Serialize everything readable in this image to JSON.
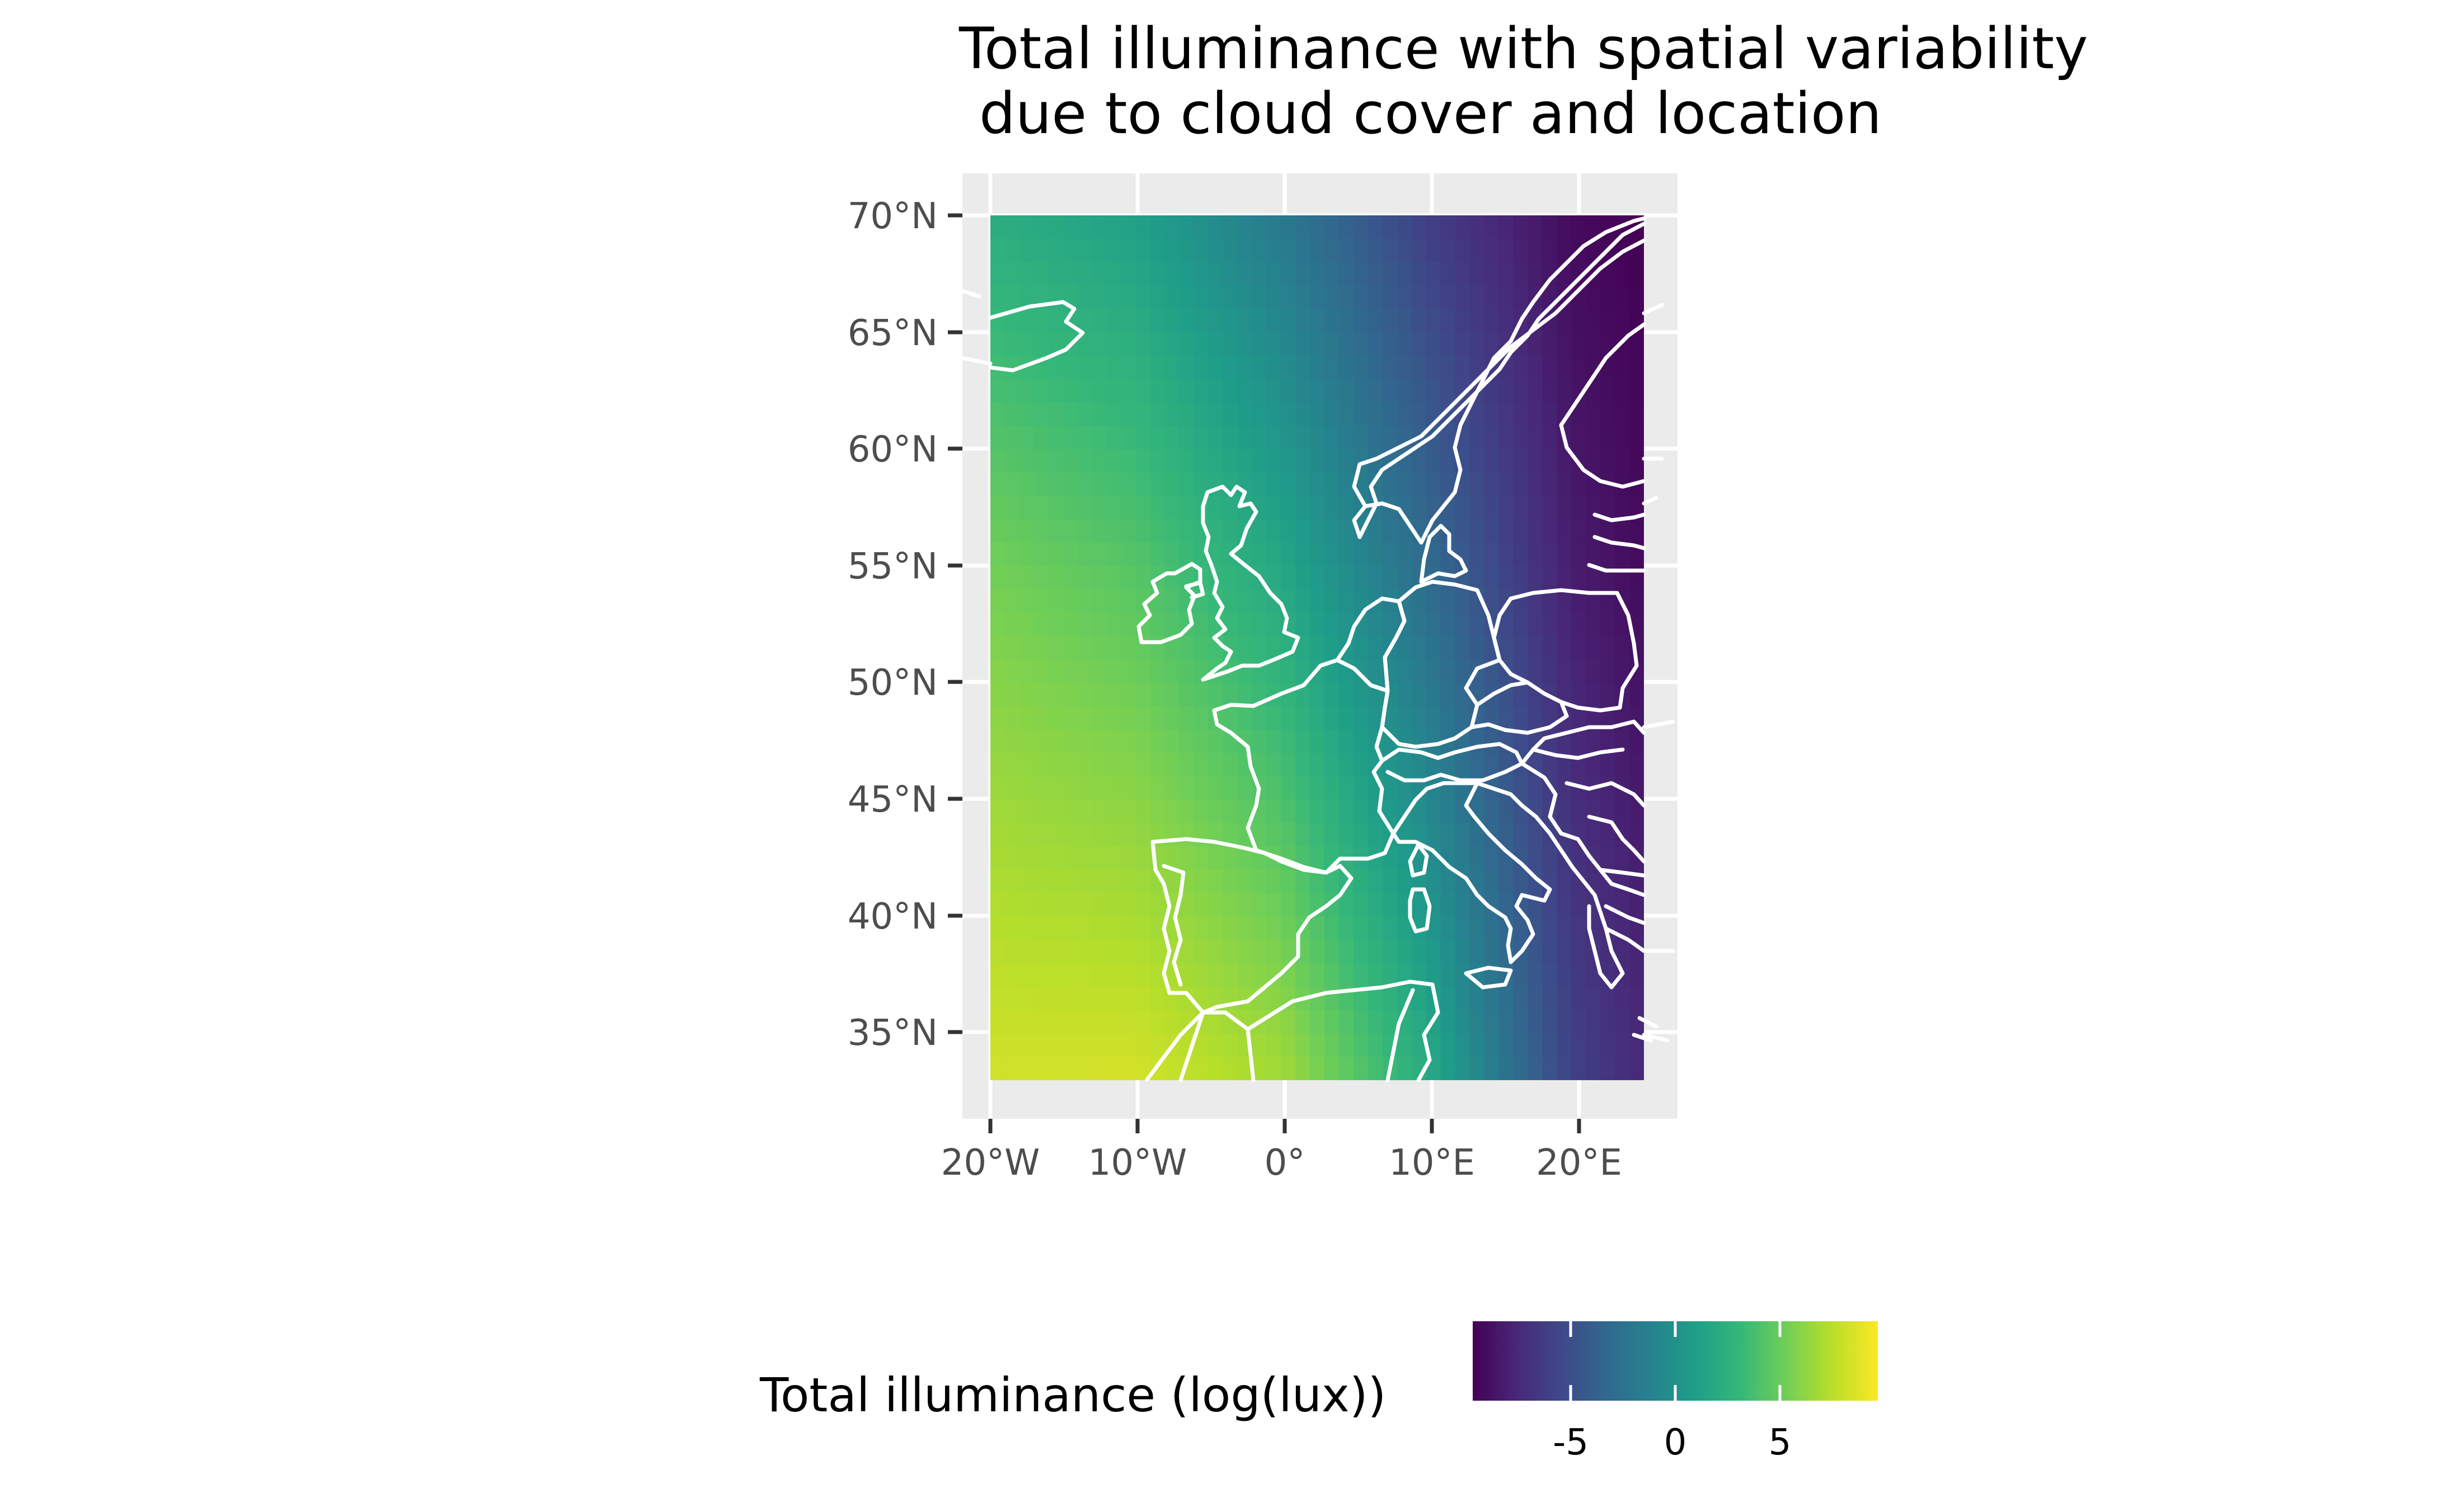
{
  "title": {
    "line1": "Total illuminance with spatial variability",
    "line2": "due to cloud cover and location"
  },
  "axes": {
    "x_ticks": [
      "20°W",
      "10°W",
      "0°",
      "10°E",
      "20°E"
    ],
    "y_ticks": [
      "70°N",
      "65°N",
      "60°N",
      "55°N",
      "50°N",
      "45°N",
      "40°N",
      "35°N"
    ]
  },
  "legend": {
    "title": "Total illuminance (log(lux))",
    "ticks": [
      "-5",
      "0",
      "5"
    ],
    "position": "bottom"
  },
  "colors": {
    "panel_background": "#ebebeb",
    "border_lines": "#ffffff",
    "viridis": [
      "#440154",
      "#482878",
      "#3e4989",
      "#31688e",
      "#26828e",
      "#1f9e89",
      "#35b779",
      "#6ece58",
      "#b5de2b",
      "#fde725"
    ]
  },
  "chart_data": {
    "type": "heatmap",
    "title": "Total illuminance with spatial variability due to cloud cover and location",
    "fill_label": "Total illuminance (log(lux))",
    "lon_range": [
      -20,
      25
    ],
    "lat_range": [
      33,
      70
    ],
    "fill_range": [
      -8.5,
      10
    ],
    "legend_breaks": [
      -5,
      0,
      5
    ],
    "grid": true,
    "legend_placement": "bottom",
    "fill_samples_by_longitude": [
      {
        "lon": -20,
        "lat_70": 3,
        "lat_55": 6,
        "lat_35": 8.5
      },
      {
        "lon": -10,
        "lat_70": 2,
        "lat_55": 5,
        "lat_35": 8.5
      },
      {
        "lon": 0,
        "lat_70": -1,
        "lat_55": 2.5,
        "lat_35": 7
      },
      {
        "lon": 10,
        "lat_70": -5,
        "lat_55": -2,
        "lat_35": 2.5
      },
      {
        "lon": 20,
        "lat_70": -8,
        "lat_55": -7,
        "lat_35": -5
      },
      {
        "lon": 25,
        "lat_70": -8.5,
        "lat_55": -8,
        "lat_35": -6.5
      }
    ]
  }
}
